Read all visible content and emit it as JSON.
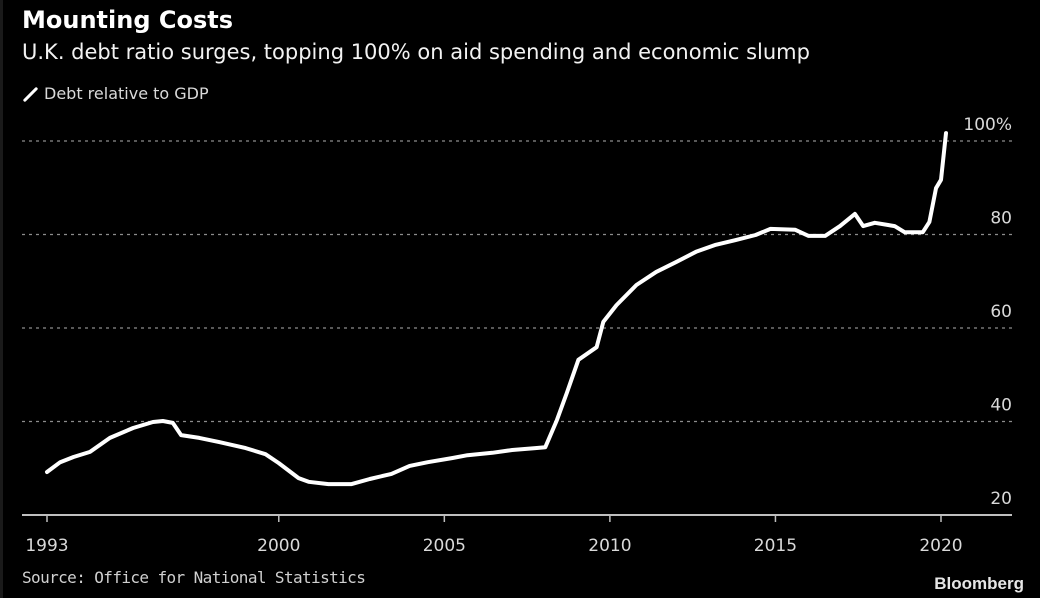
{
  "title": "Mounting Costs",
  "subtitle": "U.K. debt ratio surges, topping 100% on aid spending and economic slump",
  "source": "Source: Office for National Statistics",
  "brand": "Bloomberg",
  "colors": {
    "background": "#000000",
    "line": "#ffffff",
    "grid": "#8c8c8c",
    "axis": "#bfbfbf",
    "text": "#d9d9d9"
  },
  "chart_data": {
    "type": "line",
    "title": "Mounting Costs",
    "subtitle": "U.K. debt ratio surges, topping 100% on aid spending and economic slump",
    "xlabel": "",
    "ylabel": "",
    "xlim": [
      1992.1,
      2021.9
    ],
    "ylim": [
      20,
      102
    ],
    "legend": {
      "position": "top-left",
      "entries": [
        "Debt relative to GDP"
      ]
    },
    "grid": true,
    "x_ticks": [
      {
        "value": 1993,
        "label": "1993"
      },
      {
        "value": 2000,
        "label": "2000"
      },
      {
        "value": 2005,
        "label": "2005"
      },
      {
        "value": 2010,
        "label": "2010"
      },
      {
        "value": 2015,
        "label": "2015"
      },
      {
        "value": 2020,
        "label": "2020"
      }
    ],
    "y_ticks": [
      {
        "value": 20,
        "label": "20"
      },
      {
        "value": 40,
        "label": "40"
      },
      {
        "value": 60,
        "label": "60"
      },
      {
        "value": 80,
        "label": "80"
      },
      {
        "value": 100,
        "label": "100%"
      }
    ],
    "series": [
      {
        "name": "Debt relative to GDP",
        "x": [
          1993.0,
          1993.4,
          1993.8,
          1994.3,
          1994.9,
          1995.6,
          1996.2,
          1996.5,
          1996.8,
          1997.05,
          1997.6,
          1998.2,
          1999.0,
          1999.6,
          2000.0,
          2000.6,
          2000.9,
          2001.5,
          2002.2,
          2002.75,
          2003.4,
          2003.95,
          2004.5,
          2005.25,
          2005.7,
          2006.45,
          2007.05,
          2007.75,
          2008.05,
          2008.4,
          2008.7,
          2009.05,
          2009.6,
          2009.8,
          2010.2,
          2010.8,
          2011.4,
          2012.0,
          2012.6,
          2013.2,
          2013.8,
          2014.4,
          2014.85,
          2015.6,
          2016.0,
          2016.5,
          2016.95,
          2017.4,
          2017.65,
          2018.0,
          2018.6,
          2018.9,
          2019.45,
          2019.65,
          2019.85,
          2020.0,
          2020.15
        ],
        "y": [
          29.2,
          31.3,
          32.4,
          33.5,
          36.5,
          38.6,
          39.9,
          40.1,
          39.7,
          37.1,
          36.5,
          35.6,
          34.3,
          33.0,
          31.1,
          27.9,
          27.1,
          26.6,
          26.6,
          27.7,
          28.8,
          30.5,
          31.3,
          32.2,
          32.8,
          33.3,
          33.9,
          34.3,
          34.5,
          40.3,
          46.1,
          53.2,
          55.9,
          61.3,
          64.9,
          69.2,
          72.0,
          74.1,
          76.3,
          77.8,
          78.8,
          79.9,
          81.2,
          81.0,
          79.7,
          79.7,
          81.8,
          84.4,
          81.8,
          82.5,
          81.8,
          80.5,
          80.5,
          82.7,
          89.9,
          91.7,
          101.7
        ]
      }
    ]
  }
}
